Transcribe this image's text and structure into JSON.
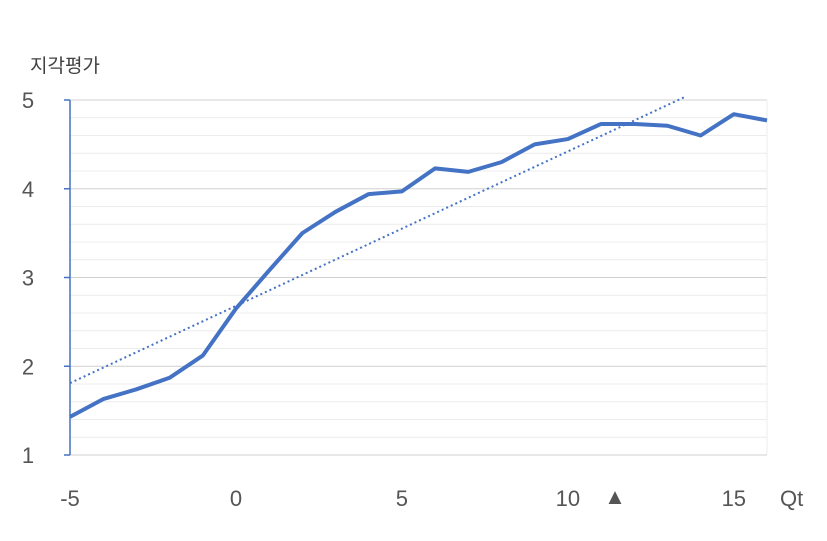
{
  "chart_data": {
    "type": "line",
    "ylabel": "지각평가",
    "x_unit": "Qt",
    "xlim": [
      -5,
      16
    ],
    "ylim": [
      1,
      5
    ],
    "x_ticks": [
      "-5",
      "0",
      "5",
      "10",
      "15"
    ],
    "y_ticks": [
      "1",
      "2",
      "3",
      "4",
      "5"
    ],
    "marker_symbol": "▲",
    "marker_x": 11,
    "grid": true,
    "colors": {
      "line": "#4472C4",
      "grid": "#d9d9d9",
      "axis": "#4472C4"
    },
    "series": [
      {
        "x": [
          -5,
          -4,
          -3,
          -2,
          -1,
          0,
          1,
          2,
          3,
          4,
          5,
          6,
          7,
          8,
          9,
          10,
          11,
          12,
          13,
          14,
          15,
          16
        ],
        "values": [
          1.43,
          1.63,
          1.74,
          1.87,
          2.12,
          2.65,
          3.08,
          3.5,
          3.74,
          3.94,
          3.97,
          4.23,
          4.19,
          4.3,
          4.5,
          4.56,
          4.73,
          4.73,
          4.71,
          4.6,
          4.84,
          4.77
        ]
      }
    ],
    "trendline": {
      "style": "dotted",
      "x": [
        -5,
        13.5
      ],
      "values": [
        1.81,
        5.03
      ]
    }
  }
}
